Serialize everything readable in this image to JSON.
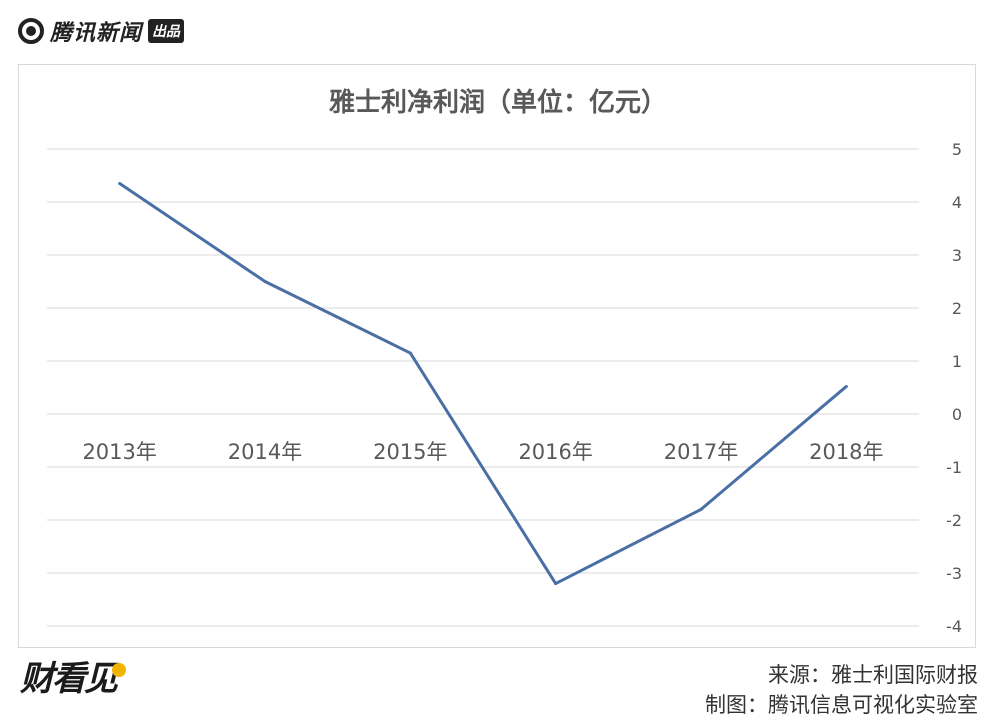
{
  "brand": {
    "name": "腾讯新闻",
    "tag": "出品",
    "icon": "tencent-news-logo-icon"
  },
  "footer": {
    "logo_text": "财看见",
    "source": "来源：雅士利国际财报",
    "credit": "制图：腾讯信息可视化实验室"
  },
  "chart_data": {
    "type": "line",
    "title": "雅士利净利润（单位：亿元）",
    "categories": [
      "2013年",
      "2014年",
      "2015年",
      "2016年",
      "2017年",
      "2018年"
    ],
    "series": [
      {
        "values": [
          4.35,
          2.5,
          1.15,
          -3.2,
          -1.8,
          0.52
        ]
      }
    ],
    "ylim": [
      -4,
      5
    ],
    "yticks": [
      5,
      4,
      3,
      2,
      1,
      0,
      -1,
      -2,
      -3,
      -4
    ],
    "y_axis_position": "right",
    "grid": true,
    "legend": "none",
    "colors": {
      "line": "#4a6fa5",
      "grid": "#d9d9d9",
      "text": "#595959"
    }
  }
}
